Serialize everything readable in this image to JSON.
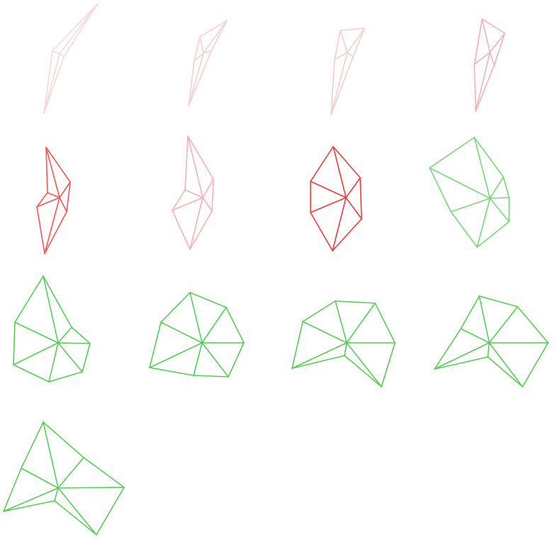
{
  "colors": {
    "background": "#ffffff",
    "red": "#ef3b3b",
    "pale_red": "#f6b2b2",
    "light_red": "#f7c7c7",
    "green": "#58cc58"
  },
  "shapes": [
    {
      "name": "shape-1",
      "color": "light_red",
      "opacity": 0.7
    },
    {
      "name": "shape-2",
      "color": "light_red",
      "opacity": 0.85
    },
    {
      "name": "shape-3",
      "color": "light_red",
      "opacity": 0.9
    },
    {
      "name": "shape-4",
      "color": "pale_red",
      "opacity": 1
    },
    {
      "name": "shape-5",
      "color": "red",
      "opacity": 0.85
    },
    {
      "name": "shape-6",
      "color": "pale_red",
      "opacity": 1
    },
    {
      "name": "shape-7",
      "color": "red",
      "opacity": 1
    },
    {
      "name": "shape-8",
      "color": "green",
      "opacity": 0.8
    },
    {
      "name": "shape-9",
      "color": "green",
      "opacity": 1
    },
    {
      "name": "shape-10",
      "color": "green",
      "opacity": 1
    },
    {
      "name": "shape-11",
      "color": "green",
      "opacity": 1
    },
    {
      "name": "shape-12",
      "color": "green",
      "opacity": 1
    },
    {
      "name": "shape-13",
      "color": "green",
      "opacity": 1
    }
  ]
}
